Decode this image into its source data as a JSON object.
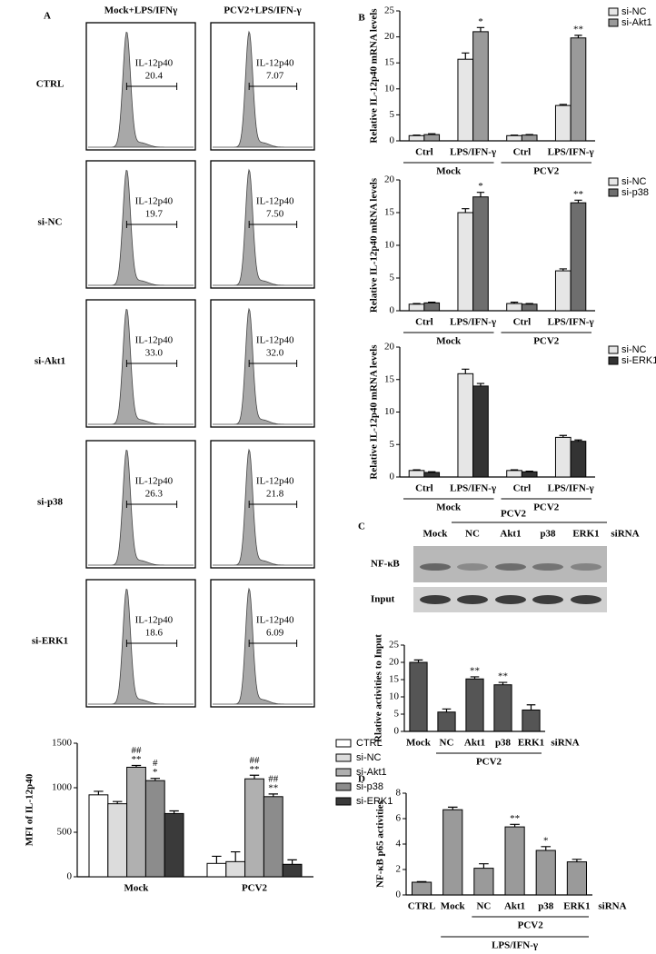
{
  "panel_letters": [
    "A",
    "B",
    "C",
    "D"
  ],
  "flow": {
    "columns": [
      "Mock+LPS/IFNγ",
      "PCV2+LPS/IFN-γ"
    ],
    "rows": [
      {
        "label": "CTRL",
        "gates": [
          {
            "name": "IL-12p40",
            "value": "20.4"
          },
          {
            "name": "IL-12p40",
            "value": "7.07"
          }
        ]
      },
      {
        "label": "si-NC",
        "gates": [
          {
            "name": "IL-12p40",
            "value": "19.7"
          },
          {
            "name": "IL-12p40",
            "value": "7.50"
          }
        ]
      },
      {
        "label": "si-Akt1",
        "gates": [
          {
            "name": "IL-12p40",
            "value": "33.0"
          },
          {
            "name": "IL-12p40",
            "value": "32.0"
          }
        ]
      },
      {
        "label": "si-p38",
        "gates": [
          {
            "name": "IL-12p40",
            "value": "26.3"
          },
          {
            "name": "IL-12p40",
            "value": "21.8"
          }
        ]
      },
      {
        "label": "si-ERK1",
        "gates": [
          {
            "name": "IL-12p40",
            "value": "18.6"
          },
          {
            "name": "IL-12p40",
            "value": "6.09"
          }
        ]
      }
    ]
  },
  "blot": {
    "header": "PCV2",
    "lanes": [
      "Mock",
      "NC",
      "Akt1",
      "p38",
      "ERK1"
    ],
    "suffix": "siRNA",
    "rows": [
      "NF-κB",
      "Input"
    ]
  },
  "chart_data": [
    {
      "type": "bar",
      "ylabel": "MFI of IL-12p40",
      "categories": [
        "Mock",
        "PCV2"
      ],
      "ylim": [
        0,
        1500
      ],
      "yticks": [
        0,
        500,
        1000,
        1500
      ],
      "series": [
        {
          "name": "CTRL",
          "color": "#ffffff",
          "values": [
            920,
            150
          ],
          "errors": [
            40,
            80
          ]
        },
        {
          "name": "si-NC",
          "color": "#dcdcdc",
          "values": [
            820,
            170
          ],
          "errors": [
            25,
            110
          ]
        },
        {
          "name": "si-Akt1",
          "color": "#b0b0b0",
          "values": [
            1230,
            1100
          ],
          "errors": [
            20,
            40
          ],
          "significance": [
            [
              "##",
              "**"
            ],
            [
              "##",
              "**"
            ]
          ]
        },
        {
          "name": "si-p38",
          "color": "#8c8c8c",
          "values": [
            1080,
            900
          ],
          "errors": [
            25,
            30
          ],
          "significance": [
            [
              "#",
              "*"
            ],
            [
              "##",
              "**"
            ]
          ]
        },
        {
          "name": "si-ERK1",
          "color": "#3a3a3a",
          "values": [
            710,
            140
          ],
          "errors": [
            30,
            50
          ]
        }
      ]
    },
    {
      "type": "bar",
      "ylabel": "Relative IL-12p40 mRNA levels",
      "categories": [
        "Ctrl",
        "LPS/IFN-γ",
        "Ctrl",
        "LPS/IFN-γ"
      ],
      "groups": [
        "Mock",
        "PCV2"
      ],
      "ylim": [
        0,
        25
      ],
      "yticks": [
        0,
        5,
        10,
        15,
        20,
        25
      ],
      "series": [
        {
          "name": "si-NC",
          "color": "#e6e6e6",
          "values": [
            1.0,
            15.7,
            1.0,
            6.8
          ],
          "errors": [
            0.1,
            1.2,
            0.1,
            0.2
          ]
        },
        {
          "name": "si-Akt1",
          "color": "#9a9a9a",
          "values": [
            1.2,
            21.0,
            1.1,
            19.8
          ],
          "errors": [
            0.15,
            0.8,
            0.1,
            0.5
          ],
          "significance": [
            null,
            [
              "*"
            ],
            null,
            [
              "**"
            ]
          ]
        }
      ]
    },
    {
      "type": "bar",
      "ylabel": "Relative IL-12p40 mRNA levels",
      "categories": [
        "Ctrl",
        "LPS/IFN-γ",
        "Ctrl",
        "LPS/IFN-γ"
      ],
      "groups": [
        "Mock",
        "PCV2"
      ],
      "ylim": [
        0,
        20
      ],
      "yticks": [
        0,
        5,
        10,
        15,
        20
      ],
      "series": [
        {
          "name": "si-NC",
          "color": "#e6e6e6",
          "values": [
            1.0,
            15.0,
            1.1,
            6.1
          ],
          "errors": [
            0.1,
            0.6,
            0.2,
            0.3
          ]
        },
        {
          "name": "si-p38",
          "color": "#6e6e6e",
          "values": [
            1.2,
            17.4,
            1.0,
            16.5
          ],
          "errors": [
            0.1,
            0.7,
            0.1,
            0.4
          ],
          "significance": [
            null,
            [
              "*"
            ],
            null,
            [
              "**"
            ]
          ]
        }
      ]
    },
    {
      "type": "bar",
      "ylabel": "Relative IL-12p40 mRNA levels",
      "categories": [
        "Ctrl",
        "LPS/IFN-γ",
        "Ctrl",
        "LPS/IFN-γ"
      ],
      "groups": [
        "Mock",
        "PCV2"
      ],
      "ylim": [
        0,
        20
      ],
      "yticks": [
        0,
        5,
        10,
        15,
        20
      ],
      "series": [
        {
          "name": "si-NC",
          "color": "#e6e6e6",
          "values": [
            1.0,
            15.9,
            1.0,
            6.1
          ],
          "errors": [
            0.1,
            0.7,
            0.1,
            0.3
          ]
        },
        {
          "name": "si-ERK1",
          "color": "#333333",
          "values": [
            0.7,
            14.0,
            0.8,
            5.5
          ],
          "errors": [
            0.1,
            0.4,
            0.1,
            0.2
          ]
        }
      ]
    },
    {
      "type": "bar",
      "ylabel": "Rlative activities to Input",
      "categories": [
        "Mock",
        "NC",
        "Akt1",
        "p38",
        "ERK1"
      ],
      "x_label": "siRNA",
      "groups": [
        "PCV2"
      ],
      "ylim": [
        0,
        25
      ],
      "yticks": [
        0,
        5,
        10,
        15,
        20,
        25
      ],
      "color": "#555555",
      "values": [
        20.0,
        5.6,
        15.2,
        13.5,
        6.2
      ],
      "errors": [
        0.7,
        0.9,
        0.6,
        0.7,
        1.5
      ],
      "significance": [
        null,
        null,
        [
          "**"
        ],
        [
          "**"
        ],
        null
      ]
    },
    {
      "type": "bar",
      "ylabel": "NF-κB p65 activities",
      "categories": [
        "CTRL",
        "Mock",
        "NC",
        "Akt1",
        "p38",
        "ERK1"
      ],
      "x_label": "siRNA",
      "groups": [
        "PCV2",
        "LPS/IFN-γ"
      ],
      "ylim": [
        0,
        8
      ],
      "yticks": [
        0,
        2,
        4,
        6,
        8
      ],
      "color": "#9a9a9a",
      "values": [
        1.0,
        6.7,
        2.1,
        5.35,
        3.5,
        2.6
      ],
      "errors": [
        0.05,
        0.2,
        0.35,
        0.2,
        0.3,
        0.2
      ],
      "significance": [
        null,
        null,
        null,
        [
          "**"
        ],
        [
          "*"
        ],
        null
      ]
    }
  ]
}
